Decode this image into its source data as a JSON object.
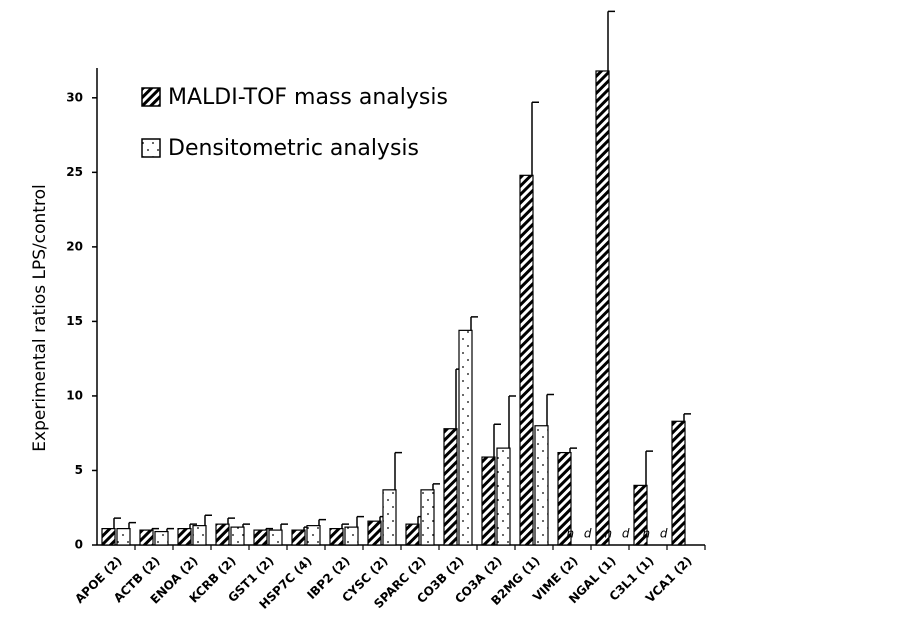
{
  "chart_data": {
    "type": "bar",
    "y_label": "Experimental ratios LPS/control",
    "categories": [
      "APOE (2)",
      "ACTB (2)",
      "ENOA (2)",
      "KCRB (2)",
      "GST1 (2)",
      "HSP7C (4)",
      "IBP2 (2)",
      "CYSC (2)",
      "SPARC (2)",
      "CO3B (2)",
      "CO3A (2)",
      "B2MG (1)",
      "VIME (2)",
      "NGAL (1)",
      "C3L1 (1)",
      "VCA1 (2)"
    ],
    "series": [
      {
        "name": "MALDI-TOF mass analysis",
        "color": "#000000",
        "pattern": "hatch",
        "values": [
          1.1,
          1.0,
          1.1,
          1.4,
          1.0,
          1.0,
          1.1,
          1.6,
          1.4,
          7.8,
          5.9,
          24.8,
          6.2,
          31.8,
          4.0,
          8.3
        ],
        "errors": [
          0.7,
          0.1,
          0.3,
          0.4,
          0.1,
          0.2,
          0.3,
          0.3,
          0.5,
          4.0,
          2.2,
          4.9,
          0.3,
          4.0,
          2.3,
          0.5
        ]
      },
      {
        "name": "Densitometric analysis",
        "color": "#000000",
        "pattern": "dots",
        "values": [
          1.1,
          0.9,
          1.3,
          1.2,
          1.0,
          1.3,
          1.2,
          3.7,
          3.7,
          14.4,
          6.5,
          8.0,
          null,
          null,
          null,
          null
        ],
        "errors": [
          0.4,
          0.2,
          0.7,
          0.2,
          0.4,
          0.4,
          0.7,
          2.5,
          0.4,
          0.9,
          3.5,
          2.1,
          null,
          null,
          null,
          null
        ],
        "value_labels": [
          null,
          null,
          null,
          null,
          null,
          null,
          null,
          null,
          null,
          null,
          null,
          null,
          "n d",
          "n d",
          "n d",
          null
        ]
      }
    ],
    "ylim": [
      0,
      32
    ],
    "yticks": [
      0,
      5,
      10,
      15,
      20,
      25,
      30
    ],
    "grid": false,
    "legend": "upper left"
  }
}
